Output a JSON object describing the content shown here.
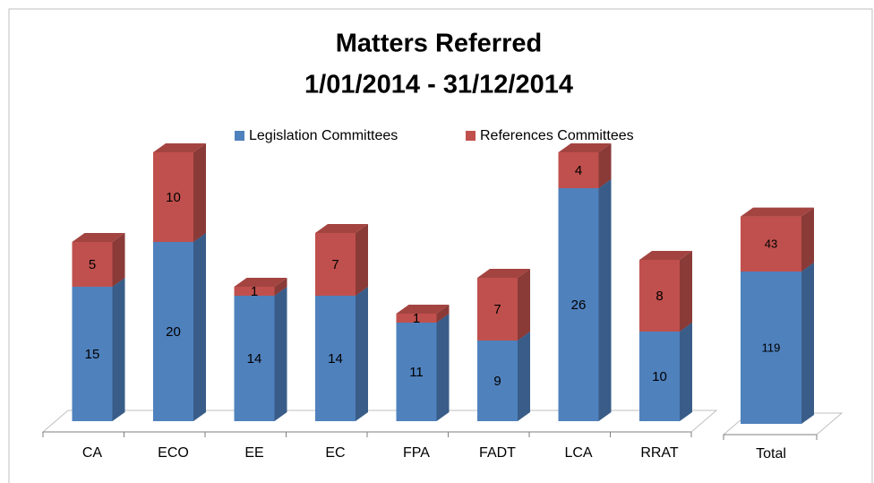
{
  "chart_data": [
    {
      "type": "bar",
      "stacked": true,
      "title": "Matters Referred",
      "subtitle": "1/01/2014 - 31/12/2014",
      "legend": "top",
      "categories": [
        "CA",
        "ECO",
        "EE",
        "EC",
        "FPA",
        "FADT",
        "LCA",
        "RRAT"
      ],
      "series": [
        {
          "name": "Legislation Committees",
          "color": "#4f81bd",
          "values": [
            15,
            20,
            14,
            14,
            11,
            9,
            26,
            10
          ]
        },
        {
          "name": "References Committees",
          "color": "#c0504d",
          "values": [
            5,
            10,
            1,
            7,
            1,
            7,
            4,
            8
          ]
        }
      ],
      "ylim": [
        0,
        30
      ]
    },
    {
      "type": "bar",
      "stacked": true,
      "categories": [
        "Total"
      ],
      "series": [
        {
          "color": "#4f81bd",
          "values": [
            119
          ]
        },
        {
          "color": "#c0504d",
          "values": [
            43
          ]
        }
      ],
      "ylim": [
        0,
        210
      ]
    }
  ]
}
